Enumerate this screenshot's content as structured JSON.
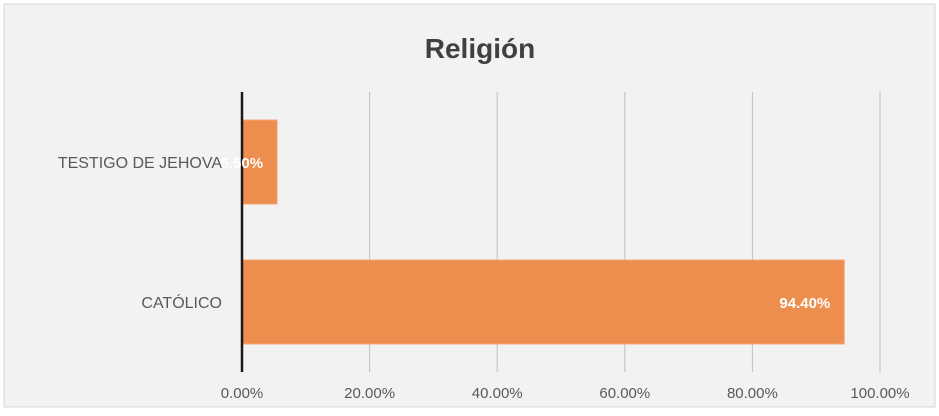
{
  "chart_data": {
    "type": "bar",
    "orientation": "horizontal",
    "title": "Religión",
    "categories": [
      "TESTIGO DE JEHOVA",
      "CATÓLICO"
    ],
    "values": [
      5.5,
      94.4
    ],
    "data_labels": [
      "5.50%",
      "94.40%"
    ],
    "xlim": [
      0,
      100
    ],
    "x_ticks": [
      0,
      20,
      40,
      60,
      80,
      100
    ],
    "x_tick_labels": [
      "0.00%",
      "20.00%",
      "40.00%",
      "60.00%",
      "80.00%",
      "100.00%"
    ],
    "xlabel": "",
    "ylabel": "",
    "grid": true,
    "legend": "none",
    "colors": {
      "bar": "#ED8D4E",
      "bar_edge": "#F4A77A",
      "data_label": "#ffffff",
      "background": "#F2F2F2",
      "frame": "#D4D4D4",
      "grid": "#BFBFBF",
      "axis": "#1A1A1A",
      "text": "#595959",
      "title": "#404040"
    }
  }
}
